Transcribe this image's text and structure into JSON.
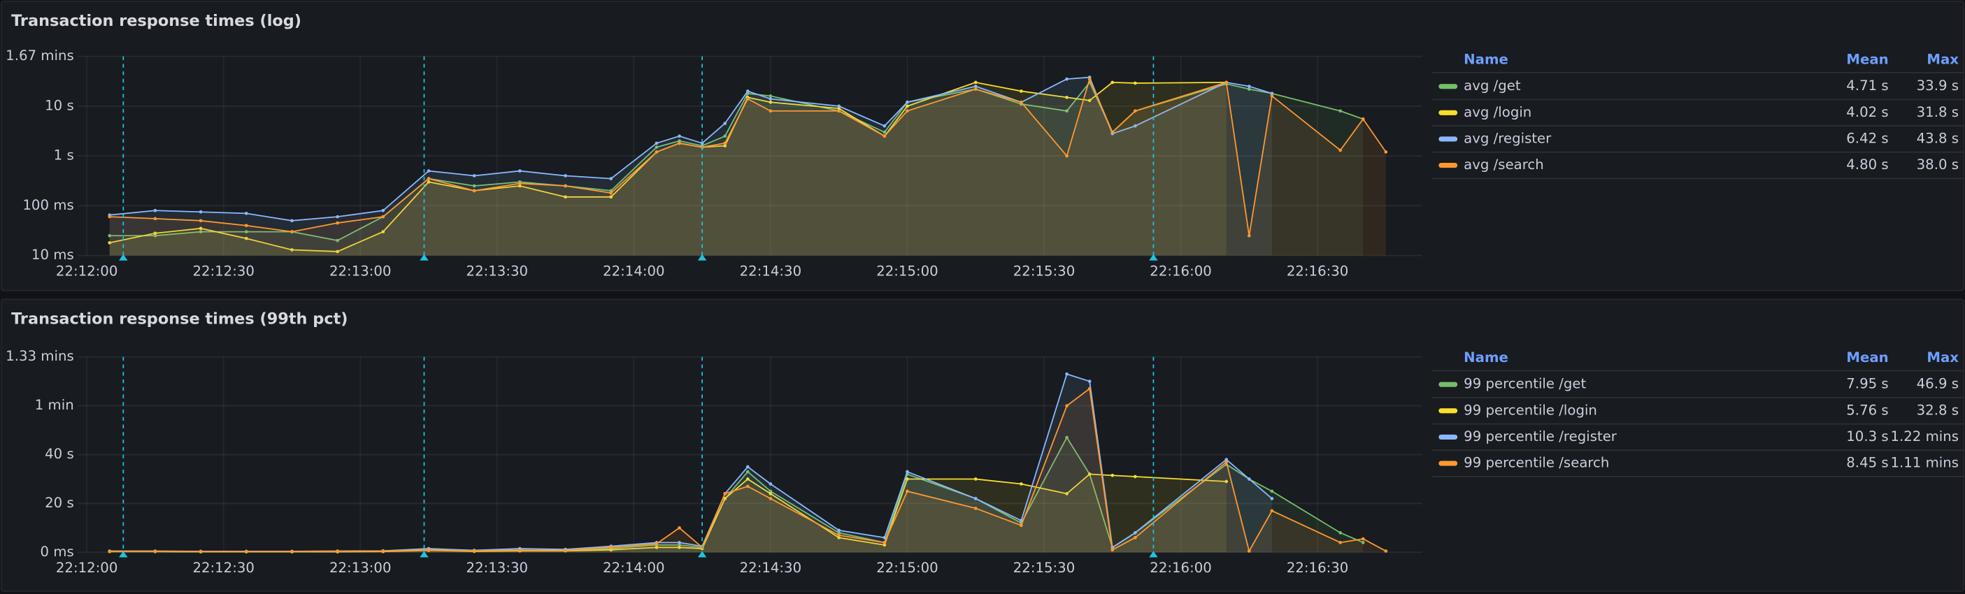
{
  "chart_data": [
    {
      "type": "line",
      "title": "Transaction response times (log)",
      "log_scale": true,
      "grid": true,
      "legend_position": "right",
      "legend_columns": [
        "Name",
        "Mean",
        "Max"
      ],
      "x": [
        "22:12:05",
        "22:12:15",
        "22:12:25",
        "22:12:35",
        "22:12:45",
        "22:12:55",
        "22:13:05",
        "22:13:15",
        "22:13:25",
        "22:13:35",
        "22:13:45",
        "22:13:55",
        "22:14:05",
        "22:14:10",
        "22:14:15",
        "22:14:20",
        "22:14:25",
        "22:14:30",
        "22:14:45",
        "22:14:55",
        "22:15:00",
        "22:15:15",
        "22:15:25",
        "22:15:35",
        "22:15:40",
        "22:15:45",
        "22:15:50",
        "22:16:10",
        "22:16:15",
        "22:16:20",
        "22:16:35",
        "22:16:40",
        "22:16:45"
      ],
      "xlim": [
        "22:11:58",
        "22:16:53"
      ],
      "xticks": [
        "22:12:00",
        "22:12:30",
        "22:13:00",
        "22:13:30",
        "22:14:00",
        "22:14:30",
        "22:15:00",
        "22:15:30",
        "22:16:00",
        "22:16:30"
      ],
      "ylim": [
        0.01,
        100
      ],
      "yticks": [
        {
          "value": 0.01,
          "label": "10 ms"
        },
        {
          "value": 0.1,
          "label": "100 ms"
        },
        {
          "value": 1,
          "label": "1 s"
        },
        {
          "value": 10,
          "label": "10 s"
        },
        {
          "value": 100,
          "label": "1.67 mins"
        }
      ],
      "annotations": [
        "22:12:08",
        "22:13:14",
        "22:14:15",
        "22:15:54"
      ],
      "series": [
        {
          "name": "avg /get",
          "color": "#73bf69",
          "mean": "4.71 s",
          "max": "33.9 s",
          "values": [
            0.025,
            0.025,
            0.03,
            0.03,
            0.03,
            0.02,
            0.06,
            0.35,
            0.25,
            0.3,
            0.25,
            0.2,
            1.5,
            2,
            1.6,
            2.5,
            18,
            16,
            8,
            3,
            12,
            22,
            11,
            8,
            30,
            3,
            8,
            28,
            22,
            18,
            8,
            5.5,
            null
          ]
        },
        {
          "name": "avg /login",
          "color": "#fade2a",
          "mean": "4.02 s",
          "max": "31.8 s",
          "values": [
            0.018,
            0.028,
            0.035,
            0.022,
            0.013,
            0.012,
            0.03,
            0.3,
            0.2,
            0.25,
            0.15,
            0.15,
            1.2,
            1.8,
            1.5,
            1.6,
            15,
            12,
            9,
            2.5,
            10,
            30,
            20,
            15,
            13,
            30,
            29,
            30,
            null,
            null,
            null,
            null,
            null
          ]
        },
        {
          "name": "avg /register",
          "color": "#8ab8ff",
          "mean": "6.42 s",
          "max": "43.8 s",
          "values": [
            0.065,
            0.08,
            0.075,
            0.07,
            0.05,
            0.06,
            0.08,
            0.5,
            0.4,
            0.5,
            0.4,
            0.35,
            1.8,
            2.5,
            1.8,
            4.5,
            20,
            14,
            10,
            4,
            12,
            25,
            12,
            35,
            38,
            2.8,
            4,
            30,
            25,
            18,
            null,
            null,
            null
          ]
        },
        {
          "name": "avg /search",
          "color": "#ff9830",
          "mean": "4.80 s",
          "max": "38.0 s",
          "values": [
            0.06,
            0.055,
            0.05,
            0.04,
            0.03,
            0.045,
            0.06,
            0.35,
            0.2,
            0.28,
            0.25,
            0.18,
            1.2,
            1.8,
            1.5,
            1.8,
            14,
            8,
            8,
            2.5,
            8,
            22,
            12,
            1,
            35,
            3,
            8,
            30,
            0.025,
            16,
            1.3,
            5.5,
            1.2
          ]
        }
      ]
    },
    {
      "type": "line",
      "title": "Transaction response times (99th pct)",
      "log_scale": false,
      "grid": true,
      "legend_position": "right",
      "legend_columns": [
        "Name",
        "Mean",
        "Max"
      ],
      "x": [
        "22:12:05",
        "22:12:15",
        "22:12:25",
        "22:12:35",
        "22:12:45",
        "22:12:55",
        "22:13:05",
        "22:13:15",
        "22:13:25",
        "22:13:35",
        "22:13:45",
        "22:13:55",
        "22:14:05",
        "22:14:10",
        "22:14:15",
        "22:14:20",
        "22:14:25",
        "22:14:30",
        "22:14:45",
        "22:14:55",
        "22:15:00",
        "22:15:15",
        "22:15:25",
        "22:15:35",
        "22:15:40",
        "22:15:45",
        "22:15:50",
        "22:16:10",
        "22:16:15",
        "22:16:20",
        "22:16:35",
        "22:16:40",
        "22:16:45"
      ],
      "xlim": [
        "22:11:58",
        "22:16:53"
      ],
      "xticks": [
        "22:12:00",
        "22:12:30",
        "22:13:00",
        "22:13:30",
        "22:14:00",
        "22:14:30",
        "22:15:00",
        "22:15:30",
        "22:16:00",
        "22:16:30"
      ],
      "ylim": [
        0,
        80
      ],
      "yticks": [
        {
          "value": 0,
          "label": "0 ms"
        },
        {
          "value": 20,
          "label": "20 s"
        },
        {
          "value": 40,
          "label": "40 s"
        },
        {
          "value": 60,
          "label": "1 min"
        },
        {
          "value": 80,
          "label": "1.33 mins"
        }
      ],
      "annotations": [
        "22:12:08",
        "22:13:14",
        "22:14:15",
        "22:15:54"
      ],
      "series": [
        {
          "name": "99 percentile /get",
          "color": "#73bf69",
          "mean": "7.95 s",
          "max": "46.9 s",
          "values": [
            0.3,
            0.3,
            0.2,
            0.2,
            0.2,
            0.3,
            0.4,
            1,
            0.5,
            0.8,
            0.8,
            1.5,
            3,
            3,
            2,
            22,
            33,
            25,
            8,
            4,
            32,
            22,
            12,
            47,
            32,
            2,
            8,
            36,
            30,
            25,
            8,
            4,
            null
          ]
        },
        {
          "name": "99 percentile /login",
          "color": "#fade2a",
          "mean": "5.76 s",
          "max": "32.8 s",
          "values": [
            0.3,
            0.3,
            0.2,
            0.2,
            0.2,
            0.2,
            0.3,
            0.8,
            0.4,
            0.6,
            0.6,
            1,
            2,
            2,
            1.5,
            22,
            30,
            24,
            6,
            3,
            30,
            30,
            28,
            24,
            32,
            31.5,
            31,
            29,
            null,
            null,
            null,
            null,
            null
          ]
        },
        {
          "name": "99 percentile /register",
          "color": "#8ab8ff",
          "mean": "10.3 s",
          "max": "1.22 mins",
          "values": [
            0.5,
            0.5,
            0.4,
            0.4,
            0.4,
            0.5,
            0.6,
            1.5,
            0.8,
            1.5,
            1.2,
            2.5,
            4,
            4,
            2.5,
            24,
            35,
            28,
            9,
            6,
            33,
            22,
            13,
            73,
            70,
            2,
            8,
            38,
            30,
            22,
            null,
            null,
            null
          ]
        },
        {
          "name": "99 percentile /search",
          "color": "#ff9830",
          "mean": "8.45 s",
          "max": "1.11 mins",
          "values": [
            0.4,
            0.4,
            0.3,
            0.3,
            0.3,
            0.4,
            0.5,
            1,
            0.6,
            0.9,
            0.8,
            2,
            3.5,
            10,
            2,
            24,
            27,
            22,
            7,
            4,
            25,
            18,
            11,
            60,
            67,
            1,
            6,
            37,
            0.5,
            17,
            4,
            5.5,
            0.5
          ]
        }
      ]
    }
  ]
}
